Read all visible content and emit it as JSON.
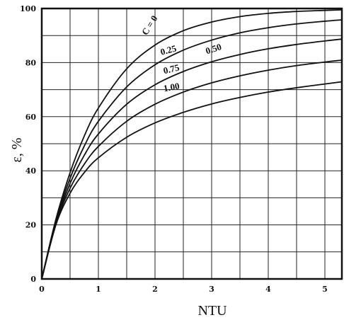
{
  "chart_data": {
    "type": "line",
    "title": "",
    "xlabel": "NTU",
    "ylabel": "ε, %",
    "xlim": [
      0,
      5.3
    ],
    "ylim": [
      0,
      100
    ],
    "x_ticks": [
      0,
      1,
      2,
      3,
      4,
      5
    ],
    "x_tick_labels": [
      "0",
      "1",
      "2",
      "3",
      "4",
      "5"
    ],
    "y_ticks": [
      0,
      20,
      40,
      60,
      80,
      100
    ],
    "y_tick_labels": [
      "0",
      "20",
      "40",
      "60",
      "80",
      "100"
    ],
    "grid": true,
    "grid_x_step": 0.5,
    "grid_y_step": 10,
    "x": [
      0,
      0.25,
      0.5,
      0.75,
      1,
      1.5,
      2,
      2.5,
      3,
      3.5,
      4,
      4.5,
      5,
      5.3
    ],
    "series": [
      {
        "name": "C = 0",
        "values": [
          0,
          22.1,
          39.3,
          52.8,
          63.2,
          77.7,
          86.5,
          91.8,
          95.0,
          97.0,
          98.2,
          98.9,
          99.3,
          99.5
        ]
      },
      {
        "name": "0.25",
        "values": [
          0,
          21.6,
          37.2,
          49.1,
          58.3,
          71.0,
          79.2,
          84.6,
          88.3,
          91.0,
          92.9,
          94.3,
          95.3,
          95.8
        ]
      },
      {
        "name": "0.50",
        "values": [
          0,
          21.0,
          35.3,
          45.7,
          53.6,
          64.6,
          71.8,
          76.7,
          80.3,
          83.0,
          85.1,
          86.7,
          88.0,
          88.7
        ]
      },
      {
        "name": "0.75",
        "values": [
          0,
          20.5,
          33.5,
          42.4,
          49.0,
          58.3,
          64.6,
          69.1,
          72.5,
          75.1,
          77.2,
          78.9,
          80.2,
          80.9
        ]
      },
      {
        "name": "1.00",
        "values": [
          0,
          20.0,
          31.7,
          39.3,
          44.8,
          52.4,
          57.7,
          61.6,
          64.7,
          67.1,
          69.1,
          70.7,
          72.1,
          72.9
        ]
      }
    ],
    "label_positions_data": [
      {
        "x": 1.95,
        "y": 93.2
      },
      {
        "x": 2.25,
        "y": 83.5
      },
      {
        "x": 3.05,
        "y": 84.0
      },
      {
        "x": 2.3,
        "y": 76.5
      },
      {
        "x": 2.3,
        "y": 69.8
      }
    ],
    "label_rotation_deg": [
      -58,
      -15,
      -18,
      -13,
      -10
    ]
  }
}
